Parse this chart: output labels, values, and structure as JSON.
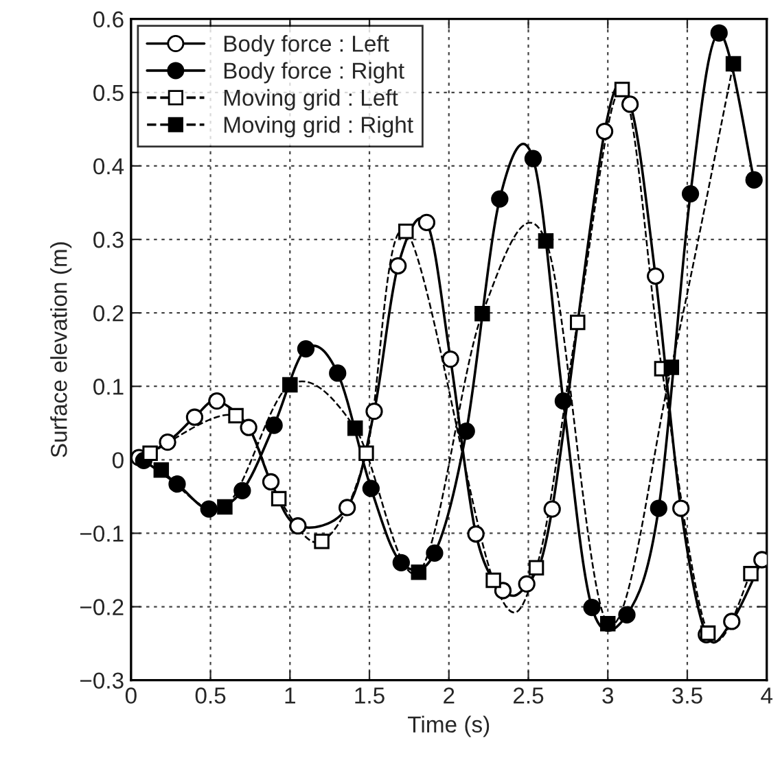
{
  "chart_data": {
    "type": "line",
    "xlabel": "Time (s)",
    "ylabel": "Surface elevation (m)",
    "xlim": [
      0,
      4
    ],
    "ylim": [
      -0.3,
      0.6
    ],
    "xticks": [
      0,
      0.5,
      1,
      1.5,
      2,
      2.5,
      3,
      3.5,
      4
    ],
    "yticks": [
      {
        "value": -0.3,
        "label": "−0.3"
      },
      {
        "value": -0.2,
        "label": "−0.2"
      },
      {
        "value": -0.1,
        "label": "−0.1"
      },
      0,
      0.1,
      0.2,
      0.3,
      0.4,
      0.5,
      0.6
    ],
    "grid": true,
    "legend": "top left",
    "series": [
      {
        "name": "Body force : Left",
        "color": "#ffffff",
        "marker": "circle",
        "line_style": "solid",
        "x": [
          0.05,
          0.23,
          0.4,
          0.54,
          0.74,
          0.88,
          1.05,
          1.36,
          1.53,
          1.68,
          1.86,
          2.01,
          2.17,
          2.34,
          2.49,
          2.65,
          2.98,
          3.14,
          3.3,
          3.46,
          3.62,
          3.78,
          3.97
        ],
        "values": [
          0.003,
          0.024,
          0.058,
          0.08,
          0.044,
          -0.03,
          -0.09,
          -0.065,
          0.066,
          0.264,
          0.323,
          0.137,
          -0.101,
          -0.178,
          -0.169,
          -0.067,
          0.447,
          0.484,
          0.25,
          -0.066,
          -0.238,
          -0.22,
          -0.136
        ]
      },
      {
        "name": "Body force : Right",
        "color": "#000000",
        "marker": "circle",
        "line_style": "solid",
        "x": [
          0.08,
          0.29,
          0.49,
          0.7,
          0.9,
          1.1,
          1.3,
          1.51,
          1.7,
          1.91,
          2.11,
          2.32,
          2.53,
          2.72,
          2.9,
          3.12,
          3.32,
          3.52,
          3.7,
          3.92
        ],
        "values": [
          -0.001,
          -0.033,
          -0.067,
          -0.042,
          0.047,
          0.151,
          0.118,
          -0.039,
          -0.14,
          -0.127,
          0.039,
          0.355,
          0.41,
          0.08,
          -0.201,
          -0.211,
          -0.066,
          0.362,
          0.581,
          0.381
        ]
      },
      {
        "name": "Moving grid : Left",
        "color": "#ffffff",
        "marker": "square",
        "line_style": "dashed",
        "x": [
          0.12,
          0.66,
          0.93,
          1.2,
          1.48,
          1.73,
          2.28,
          2.55,
          2.81,
          3.09,
          3.34,
          3.63,
          3.9
        ],
        "values": [
          0.009,
          0.06,
          -0.053,
          -0.111,
          0.009,
          0.311,
          -0.164,
          -0.147,
          0.187,
          0.504,
          0.124,
          -0.236,
          -0.155
        ]
      },
      {
        "name": "Moving grid : Right",
        "color": "#000000",
        "marker": "square",
        "line_style": "dashed",
        "x": [
          0.19,
          0.59,
          1.0,
          1.41,
          1.81,
          2.21,
          2.61,
          3.0,
          3.4,
          3.79
        ],
        "values": [
          -0.014,
          -0.064,
          0.102,
          0.043,
          -0.153,
          0.199,
          0.298,
          -0.223,
          0.126,
          0.539
        ]
      }
    ]
  }
}
